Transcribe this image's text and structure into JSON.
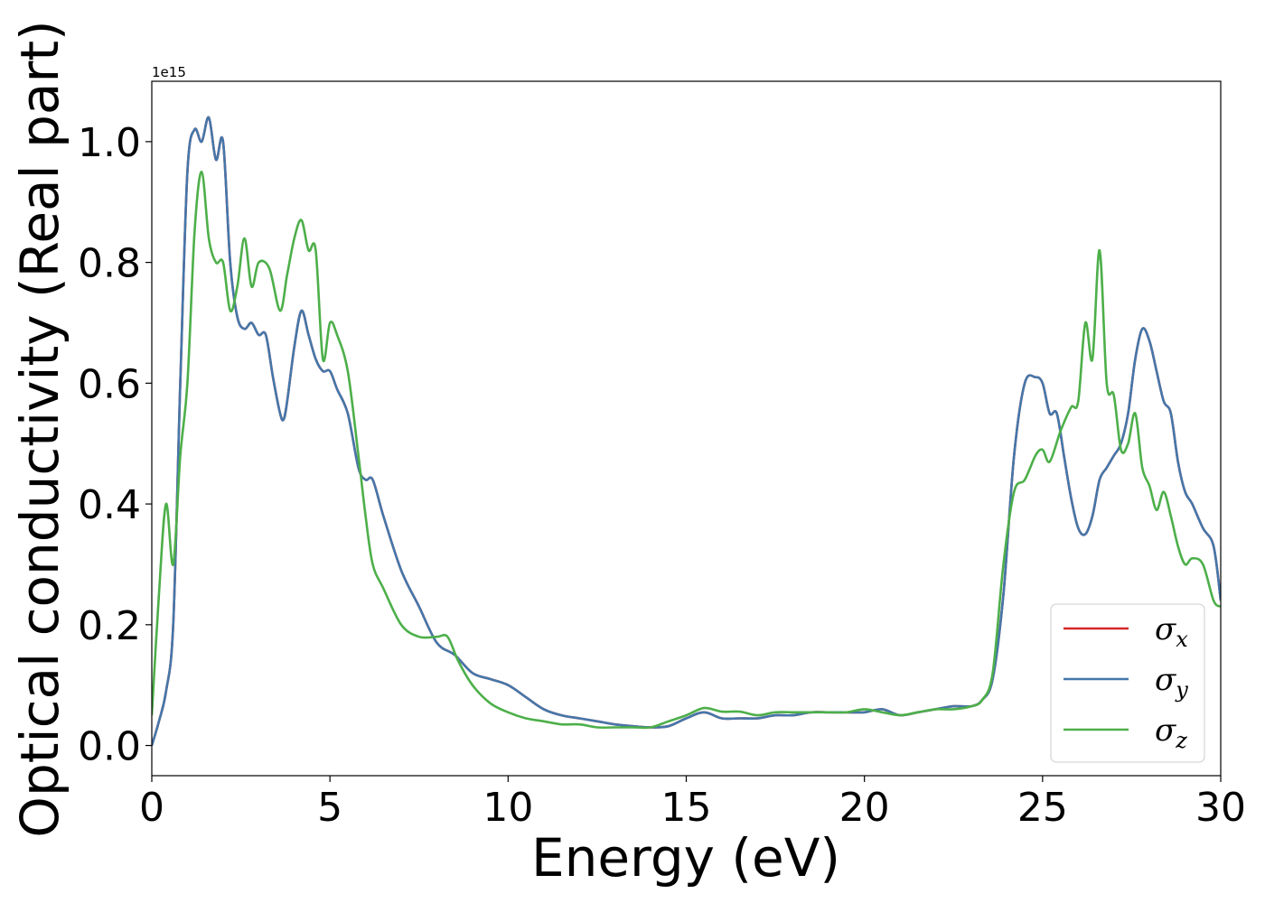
{
  "chart_data": {
    "type": "line",
    "xlabel": "Energy (eV)",
    "ylabel": "Optical conductivity (Real part)",
    "y_offset_label": "1e15",
    "xlim": [
      0,
      30
    ],
    "ylim": [
      -0.05,
      1.1
    ],
    "xticks": [
      0,
      5,
      10,
      15,
      20,
      25,
      30
    ],
    "xtick_labels": [
      "0",
      "5",
      "10",
      "15",
      "20",
      "25",
      "30"
    ],
    "yticks": [
      0.0,
      0.2,
      0.4,
      0.6,
      0.8,
      1.0
    ],
    "ytick_labels": [
      "0.0",
      "0.2",
      "0.4",
      "0.6",
      "0.8",
      "1.0"
    ],
    "grid": false,
    "legend_position": "lower-right",
    "series": [
      {
        "name": "σx",
        "legend_symbol": "σ",
        "legend_sub": "x",
        "color": "#d62728",
        "x": [
          0,
          0.2,
          0.4,
          0.6,
          0.8,
          1.0,
          1.2,
          1.4,
          1.6,
          1.8,
          2.0,
          2.2,
          2.4,
          2.6,
          2.8,
          3.0,
          3.2,
          3.4,
          3.6,
          3.7,
          3.8,
          4.0,
          4.2,
          4.4,
          4.6,
          4.8,
          5.0,
          5.2,
          5.5,
          5.8,
          6.0,
          6.2,
          6.5,
          7.0,
          7.5,
          8.0,
          8.5,
          9.0,
          9.5,
          10.0,
          10.5,
          11.0,
          11.5,
          12.0,
          12.5,
          13.0,
          13.5,
          14.0,
          14.5,
          15.0,
          15.5,
          16.0,
          16.5,
          17.0,
          17.5,
          18.0,
          18.5,
          19.0,
          19.5,
          20.0,
          20.5,
          21.0,
          21.5,
          22.0,
          22.5,
          23.0,
          23.3,
          23.6,
          23.9,
          24.2,
          24.5,
          24.8,
          25.0,
          25.2,
          25.4,
          25.6,
          25.8,
          26.0,
          26.2,
          26.4,
          26.6,
          26.8,
          27.0,
          27.2,
          27.4,
          27.6,
          27.8,
          28.0,
          28.2,
          28.4,
          28.6,
          28.8,
          29.0,
          29.2,
          29.5,
          29.8,
          30.0
        ],
        "y": [
          0.0,
          0.04,
          0.09,
          0.2,
          0.6,
          0.95,
          1.02,
          1.0,
          1.04,
          0.97,
          1.0,
          0.8,
          0.71,
          0.69,
          0.7,
          0.68,
          0.68,
          0.61,
          0.55,
          0.54,
          0.57,
          0.66,
          0.72,
          0.68,
          0.64,
          0.62,
          0.62,
          0.59,
          0.55,
          0.46,
          0.44,
          0.44,
          0.38,
          0.29,
          0.23,
          0.17,
          0.15,
          0.12,
          0.11,
          0.1,
          0.08,
          0.06,
          0.05,
          0.045,
          0.04,
          0.035,
          0.032,
          0.03,
          0.032,
          0.045,
          0.055,
          0.045,
          0.045,
          0.045,
          0.05,
          0.05,
          0.055,
          0.055,
          0.055,
          0.055,
          0.06,
          0.05,
          0.055,
          0.06,
          0.065,
          0.065,
          0.075,
          0.11,
          0.25,
          0.48,
          0.6,
          0.61,
          0.6,
          0.55,
          0.55,
          0.48,
          0.41,
          0.36,
          0.35,
          0.38,
          0.44,
          0.46,
          0.48,
          0.5,
          0.55,
          0.64,
          0.69,
          0.67,
          0.62,
          0.57,
          0.55,
          0.47,
          0.42,
          0.4,
          0.36,
          0.33,
          0.24
        ]
      },
      {
        "name": "σy",
        "legend_symbol": "σ",
        "legend_sub": "y",
        "color": "#4477aa",
        "x": [
          0,
          0.2,
          0.4,
          0.6,
          0.8,
          1.0,
          1.2,
          1.4,
          1.6,
          1.8,
          2.0,
          2.2,
          2.4,
          2.6,
          2.8,
          3.0,
          3.2,
          3.4,
          3.6,
          3.7,
          3.8,
          4.0,
          4.2,
          4.4,
          4.6,
          4.8,
          5.0,
          5.2,
          5.5,
          5.8,
          6.0,
          6.2,
          6.5,
          7.0,
          7.5,
          8.0,
          8.5,
          9.0,
          9.5,
          10.0,
          10.5,
          11.0,
          11.5,
          12.0,
          12.5,
          13.0,
          13.5,
          14.0,
          14.5,
          15.0,
          15.5,
          16.0,
          16.5,
          17.0,
          17.5,
          18.0,
          18.5,
          19.0,
          19.5,
          20.0,
          20.5,
          21.0,
          21.5,
          22.0,
          22.5,
          23.0,
          23.3,
          23.6,
          23.9,
          24.2,
          24.5,
          24.8,
          25.0,
          25.2,
          25.4,
          25.6,
          25.8,
          26.0,
          26.2,
          26.4,
          26.6,
          26.8,
          27.0,
          27.2,
          27.4,
          27.6,
          27.8,
          28.0,
          28.2,
          28.4,
          28.6,
          28.8,
          29.0,
          29.2,
          29.5,
          29.8,
          30.0
        ],
        "y": [
          0.0,
          0.04,
          0.09,
          0.2,
          0.6,
          0.95,
          1.02,
          1.0,
          1.04,
          0.97,
          1.0,
          0.8,
          0.71,
          0.69,
          0.7,
          0.68,
          0.68,
          0.61,
          0.55,
          0.54,
          0.57,
          0.66,
          0.72,
          0.68,
          0.64,
          0.62,
          0.62,
          0.59,
          0.55,
          0.46,
          0.44,
          0.44,
          0.38,
          0.29,
          0.23,
          0.17,
          0.15,
          0.12,
          0.11,
          0.1,
          0.08,
          0.06,
          0.05,
          0.045,
          0.04,
          0.035,
          0.032,
          0.03,
          0.032,
          0.045,
          0.055,
          0.045,
          0.045,
          0.045,
          0.05,
          0.05,
          0.055,
          0.055,
          0.055,
          0.055,
          0.06,
          0.05,
          0.055,
          0.06,
          0.065,
          0.065,
          0.075,
          0.11,
          0.25,
          0.48,
          0.6,
          0.61,
          0.6,
          0.55,
          0.55,
          0.48,
          0.41,
          0.36,
          0.35,
          0.38,
          0.44,
          0.46,
          0.48,
          0.5,
          0.55,
          0.64,
          0.69,
          0.67,
          0.62,
          0.57,
          0.55,
          0.47,
          0.42,
          0.4,
          0.36,
          0.33,
          0.24
        ]
      },
      {
        "name": "σz",
        "legend_symbol": "σ",
        "legend_sub": "z",
        "color": "#4daf4a",
        "x": [
          0,
          0.2,
          0.4,
          0.6,
          0.8,
          1.0,
          1.2,
          1.4,
          1.6,
          1.8,
          2.0,
          2.2,
          2.4,
          2.6,
          2.8,
          3.0,
          3.3,
          3.6,
          3.8,
          4.0,
          4.2,
          4.4,
          4.6,
          4.8,
          5.0,
          5.2,
          5.5,
          5.8,
          6.0,
          6.2,
          6.5,
          7.0,
          7.5,
          8.0,
          8.3,
          8.6,
          9.0,
          9.5,
          10.0,
          10.5,
          11.0,
          11.5,
          12.0,
          12.5,
          13.0,
          13.5,
          14.0,
          14.5,
          15.0,
          15.5,
          16.0,
          16.5,
          17.0,
          17.5,
          18.0,
          18.5,
          19.0,
          19.5,
          20.0,
          20.5,
          21.0,
          21.5,
          22.0,
          22.5,
          23.0,
          23.3,
          23.6,
          23.9,
          24.2,
          24.5,
          24.8,
          25.0,
          25.2,
          25.5,
          25.8,
          26.0,
          26.2,
          26.4,
          26.6,
          26.8,
          27.0,
          27.2,
          27.4,
          27.6,
          27.8,
          28.0,
          28.2,
          28.4,
          28.6,
          28.8,
          29.0,
          29.2,
          29.5,
          29.8,
          30.0
        ],
        "y": [
          0.05,
          0.25,
          0.4,
          0.3,
          0.48,
          0.6,
          0.85,
          0.95,
          0.84,
          0.8,
          0.8,
          0.72,
          0.76,
          0.84,
          0.76,
          0.8,
          0.79,
          0.72,
          0.78,
          0.84,
          0.87,
          0.82,
          0.82,
          0.64,
          0.7,
          0.68,
          0.62,
          0.48,
          0.38,
          0.3,
          0.26,
          0.2,
          0.18,
          0.18,
          0.18,
          0.14,
          0.1,
          0.07,
          0.055,
          0.045,
          0.04,
          0.035,
          0.035,
          0.03,
          0.03,
          0.03,
          0.03,
          0.04,
          0.05,
          0.062,
          0.056,
          0.056,
          0.05,
          0.055,
          0.055,
          0.055,
          0.055,
          0.055,
          0.06,
          0.055,
          0.05,
          0.055,
          0.06,
          0.06,
          0.065,
          0.075,
          0.12,
          0.3,
          0.42,
          0.44,
          0.48,
          0.49,
          0.47,
          0.52,
          0.56,
          0.57,
          0.7,
          0.64,
          0.82,
          0.6,
          0.58,
          0.49,
          0.5,
          0.55,
          0.46,
          0.43,
          0.39,
          0.42,
          0.38,
          0.33,
          0.3,
          0.31,
          0.3,
          0.24,
          0.23
        ]
      }
    ]
  }
}
